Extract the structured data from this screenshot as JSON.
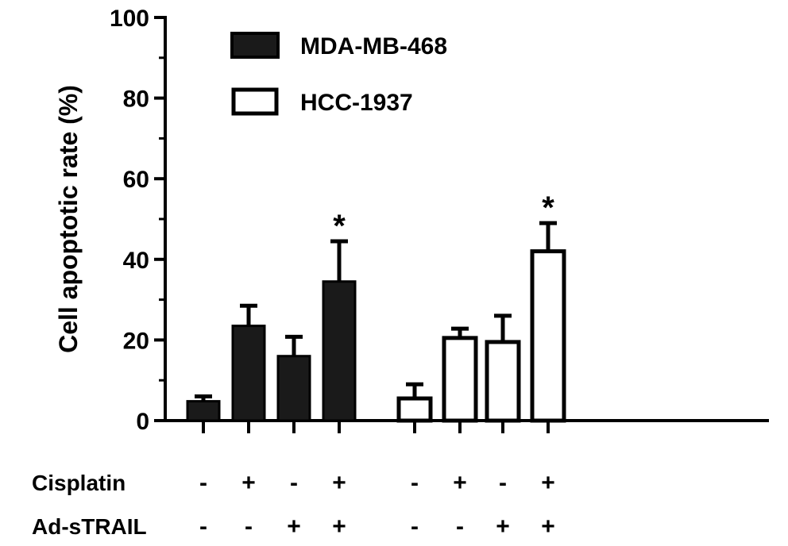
{
  "chart_data": {
    "type": "bar",
    "ylabel": "Cell apoptotic rate (%)",
    "ylim": [
      0,
      100
    ],
    "yticks": [
      0,
      20,
      40,
      60,
      80,
      100
    ],
    "legend_position": "top-left",
    "series": [
      {
        "name": "MDA-MB-468",
        "fill": "#1a1a1a",
        "values": [
          4.8,
          23.5,
          16.0,
          34.5
        ],
        "errors": [
          1.2,
          5.0,
          4.8,
          10.0
        ],
        "significant": [
          false,
          false,
          false,
          true
        ]
      },
      {
        "name": "HCC-1937",
        "fill": "#ffffff",
        "values": [
          5.5,
          20.5,
          19.5,
          42.0
        ],
        "errors": [
          3.5,
          2.3,
          6.5,
          7.0
        ],
        "significant": [
          false,
          false,
          false,
          true
        ]
      }
    ],
    "significance_marker": "*",
    "conditions": [
      {
        "label": "Cisplatin",
        "values": [
          "-",
          "+",
          "-",
          "+",
          "-",
          "+",
          "-",
          "+"
        ]
      },
      {
        "label": "Ad-sTRAIL",
        "values": [
          "-",
          "-",
          "+",
          "+",
          "-",
          "-",
          "+",
          "+"
        ]
      }
    ]
  }
}
